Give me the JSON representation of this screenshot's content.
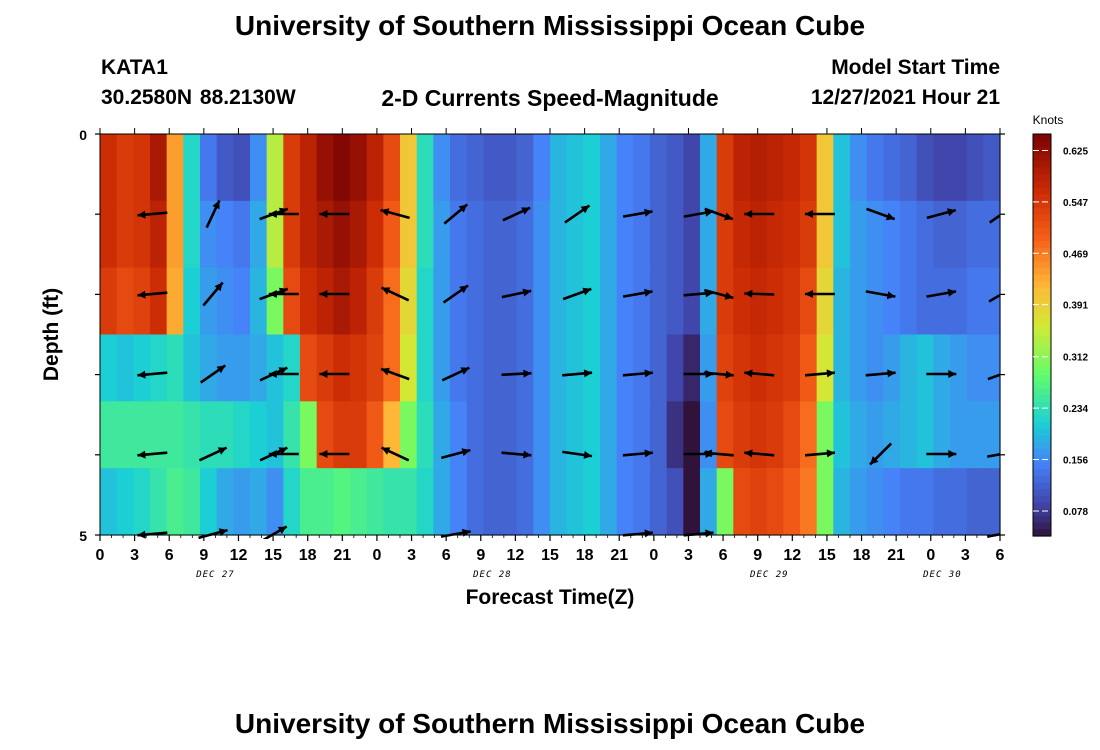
{
  "header": {
    "title": "University of Southern Mississippi Ocean Cube",
    "station": "KATA1",
    "coords": "30.2580N  88.2130W",
    "plot_title": "2-D Currents Speed-Magnitude",
    "model_start_label": "Model Start Time",
    "model_start_value": "12/27/2021 Hour 21",
    "footer_title": "University of Southern Mississippi Ocean Cube"
  },
  "chart_data": {
    "type": "heatmap",
    "title": "2-D Currents Speed-Magnitude",
    "xlabel": "Forecast Time(Z)",
    "ylabel": "Depth (ft)",
    "ylim": [
      5,
      0
    ],
    "y_tick_labels": [
      "0",
      "5"
    ],
    "x_tick_labels": [
      "0",
      "3",
      "6",
      "9",
      "12",
      "15",
      "18",
      "21",
      "0",
      "3",
      "6",
      "9",
      "12",
      "15",
      "18",
      "21",
      "0",
      "3",
      "6",
      "9",
      "12",
      "15",
      "18",
      "21",
      "0",
      "3",
      "6"
    ],
    "date_labels": [
      {
        "label": "DEC 27",
        "hour": 12
      },
      {
        "label": "DEC 28",
        "hour": 36
      },
      {
        "label": "DEC 29",
        "hour": 60
      },
      {
        "label": "DEC 30",
        "hour": 75
      }
    ],
    "x_range_hours": [
      0,
      78
    ],
    "depth_layers": [
      0,
      1,
      2,
      3,
      4,
      5
    ],
    "colorbar": {
      "label": "Knots",
      "min": 0.04,
      "max": 0.65,
      "ticks": [
        0.625,
        0.547,
        0.469,
        0.391,
        0.312,
        0.234,
        0.156,
        0.078
      ]
    },
    "speed_knots_by_layer": [
      [
        0.56,
        0.54,
        0.55,
        0.6,
        0.44,
        0.22,
        0.14,
        0.11,
        0.1,
        0.16,
        0.34,
        0.54,
        0.58,
        0.62,
        0.64,
        0.62,
        0.58,
        0.52,
        0.4,
        0.23,
        0.16,
        0.13,
        0.12,
        0.11,
        0.11,
        0.12,
        0.15,
        0.19,
        0.2,
        0.21,
        0.18,
        0.15,
        0.14,
        0.12,
        0.11,
        0.09,
        0.18,
        0.54,
        0.58,
        0.59,
        0.58,
        0.57,
        0.55,
        0.4,
        0.2,
        0.16,
        0.14,
        0.13,
        0.12,
        0.1,
        0.09,
        0.09,
        0.1,
        0.11
      ],
      [
        0.56,
        0.54,
        0.55,
        0.58,
        0.44,
        0.22,
        0.16,
        0.15,
        0.14,
        0.18,
        0.34,
        0.54,
        0.58,
        0.6,
        0.62,
        0.6,
        0.56,
        0.5,
        0.4,
        0.23,
        0.17,
        0.14,
        0.13,
        0.12,
        0.12,
        0.13,
        0.16,
        0.19,
        0.2,
        0.21,
        0.18,
        0.15,
        0.14,
        0.12,
        0.11,
        0.09,
        0.18,
        0.54,
        0.57,
        0.58,
        0.57,
        0.56,
        0.54,
        0.4,
        0.2,
        0.17,
        0.16,
        0.15,
        0.14,
        0.13,
        0.12,
        0.12,
        0.13,
        0.13
      ],
      [
        0.54,
        0.52,
        0.53,
        0.56,
        0.43,
        0.21,
        0.17,
        0.16,
        0.15,
        0.19,
        0.3,
        0.52,
        0.56,
        0.58,
        0.6,
        0.58,
        0.54,
        0.48,
        0.38,
        0.22,
        0.17,
        0.14,
        0.13,
        0.12,
        0.12,
        0.13,
        0.16,
        0.19,
        0.2,
        0.21,
        0.18,
        0.15,
        0.14,
        0.12,
        0.11,
        0.09,
        0.18,
        0.54,
        0.56,
        0.57,
        0.56,
        0.55,
        0.52,
        0.38,
        0.19,
        0.17,
        0.16,
        0.15,
        0.14,
        0.13,
        0.13,
        0.13,
        0.14,
        0.14
      ],
      [
        0.21,
        0.2,
        0.21,
        0.22,
        0.23,
        0.2,
        0.18,
        0.17,
        0.17,
        0.18,
        0.2,
        0.22,
        0.52,
        0.54,
        0.56,
        0.55,
        0.53,
        0.48,
        0.36,
        0.22,
        0.17,
        0.14,
        0.13,
        0.12,
        0.12,
        0.13,
        0.16,
        0.19,
        0.2,
        0.21,
        0.18,
        0.15,
        0.14,
        0.12,
        0.09,
        0.06,
        0.17,
        0.53,
        0.55,
        0.56,
        0.55,
        0.54,
        0.5,
        0.36,
        0.19,
        0.17,
        0.16,
        0.17,
        0.19,
        0.2,
        0.18,
        0.17,
        0.16,
        0.16
      ],
      [
        0.25,
        0.25,
        0.25,
        0.25,
        0.25,
        0.24,
        0.23,
        0.23,
        0.22,
        0.21,
        0.2,
        0.24,
        0.3,
        0.52,
        0.54,
        0.54,
        0.5,
        0.42,
        0.3,
        0.23,
        0.18,
        0.15,
        0.13,
        0.12,
        0.12,
        0.13,
        0.16,
        0.19,
        0.2,
        0.21,
        0.18,
        0.15,
        0.14,
        0.12,
        0.07,
        0.04,
        0.16,
        0.52,
        0.54,
        0.55,
        0.54,
        0.52,
        0.48,
        0.3,
        0.2,
        0.18,
        0.17,
        0.18,
        0.19,
        0.2,
        0.18,
        0.17,
        0.17,
        0.17
      ],
      [
        0.2,
        0.21,
        0.22,
        0.24,
        0.26,
        0.25,
        0.21,
        0.18,
        0.17,
        0.18,
        0.16,
        0.22,
        0.26,
        0.26,
        0.27,
        0.26,
        0.25,
        0.24,
        0.24,
        0.22,
        0.18,
        0.15,
        0.13,
        0.12,
        0.12,
        0.13,
        0.16,
        0.19,
        0.2,
        0.21,
        0.18,
        0.15,
        0.14,
        0.12,
        0.1,
        0.02,
        0.18,
        0.3,
        0.52,
        0.53,
        0.52,
        0.5,
        0.47,
        0.3,
        0.19,
        0.17,
        0.16,
        0.15,
        0.14,
        0.14,
        0.13,
        0.13,
        0.12,
        0.12
      ]
    ],
    "arrows": [
      {
        "hour": 3,
        "layer": 1,
        "angle_deg": 185
      },
      {
        "hour": 3,
        "layer": 2,
        "angle_deg": 185
      },
      {
        "hour": 3,
        "layer": 3,
        "angle_deg": 185
      },
      {
        "hour": 3,
        "layer": 4,
        "angle_deg": 185
      },
      {
        "hour": 3,
        "layer": 5,
        "angle_deg": 185
      },
      {
        "hour": 9,
        "layer": 1,
        "angle_deg": 65
      },
      {
        "hour": 9,
        "layer": 2,
        "angle_deg": 50
      },
      {
        "hour": 9,
        "layer": 3,
        "angle_deg": 35
      },
      {
        "hour": 9,
        "layer": 4,
        "angle_deg": 25
      },
      {
        "hour": 9,
        "layer": 5,
        "angle_deg": 15
      },
      {
        "hour": 15,
        "layer": 1,
        "angle_deg": 20
      },
      {
        "hour": 15,
        "layer": 2,
        "angle_deg": 20
      },
      {
        "hour": 15,
        "layer": 3,
        "angle_deg": 25
      },
      {
        "hour": 15,
        "layer": 4,
        "angle_deg": 25
      },
      {
        "hour": 15,
        "layer": 5,
        "angle_deg": 30
      },
      {
        "hour": 16,
        "layer": 1,
        "angle_deg": 180
      },
      {
        "hour": 16,
        "layer": 2,
        "angle_deg": 180
      },
      {
        "hour": 16,
        "layer": 3,
        "angle_deg": 180
      },
      {
        "hour": 16,
        "layer": 4,
        "angle_deg": 180
      },
      {
        "hour": 21,
        "layer": 1,
        "angle_deg": 180
      },
      {
        "hour": 21,
        "layer": 2,
        "angle_deg": 180
      },
      {
        "hour": 21,
        "layer": 3,
        "angle_deg": 180
      },
      {
        "hour": 21,
        "layer": 4,
        "angle_deg": 180
      },
      {
        "hour": 27,
        "layer": 1,
        "angle_deg": 165
      },
      {
        "hour": 27,
        "layer": 2,
        "angle_deg": 155
      },
      {
        "hour": 27,
        "layer": 3,
        "angle_deg": 160
      },
      {
        "hour": 27,
        "layer": 4,
        "angle_deg": 155
      },
      {
        "hour": 33,
        "layer": 1,
        "angle_deg": 40
      },
      {
        "hour": 33,
        "layer": 2,
        "angle_deg": 35
      },
      {
        "hour": 33,
        "layer": 3,
        "angle_deg": 25
      },
      {
        "hour": 33,
        "layer": 4,
        "angle_deg": 15
      },
      {
        "hour": 33,
        "layer": 5,
        "angle_deg": 10
      },
      {
        "hour": 39,
        "layer": 1,
        "angle_deg": 25
      },
      {
        "hour": 39,
        "layer": 2,
        "angle_deg": 12
      },
      {
        "hour": 39,
        "layer": 3,
        "angle_deg": 3
      },
      {
        "hour": 39,
        "layer": 4,
        "angle_deg": -5
      },
      {
        "hour": 45,
        "layer": 1,
        "angle_deg": 35
      },
      {
        "hour": 45,
        "layer": 2,
        "angle_deg": 20
      },
      {
        "hour": 45,
        "layer": 3,
        "angle_deg": 5
      },
      {
        "hour": 45,
        "layer": 4,
        "angle_deg": -8
      },
      {
        "hour": 51,
        "layer": 1,
        "angle_deg": 10
      },
      {
        "hour": 51,
        "layer": 2,
        "angle_deg": 10
      },
      {
        "hour": 51,
        "layer": 3,
        "angle_deg": 5
      },
      {
        "hour": 51,
        "layer": 4,
        "angle_deg": 5
      },
      {
        "hour": 51,
        "layer": 5,
        "angle_deg": 5
      },
      {
        "hour": 57,
        "layer": 1,
        "angle_deg": 10
      },
      {
        "hour": 57,
        "layer": 2,
        "angle_deg": 5
      },
      {
        "hour": 57,
        "layer": 3,
        "angle_deg": 0
      },
      {
        "hour": 57,
        "layer": 4,
        "angle_deg": 0
      },
      {
        "hour": 57,
        "layer": 5,
        "angle_deg": 5
      },
      {
        "hour": 59,
        "layer": 1,
        "angle_deg": -20
      },
      {
        "hour": 59,
        "layer": 2,
        "angle_deg": -15
      },
      {
        "hour": 59,
        "layer": 3,
        "angle_deg": -5
      },
      {
        "hour": 59,
        "layer": 4,
        "angle_deg": 175
      },
      {
        "hour": 63,
        "layer": 1,
        "angle_deg": 180
      },
      {
        "hour": 63,
        "layer": 2,
        "angle_deg": 178
      },
      {
        "hour": 63,
        "layer": 3,
        "angle_deg": 175
      },
      {
        "hour": 63,
        "layer": 4,
        "angle_deg": 175
      },
      {
        "hour": 69,
        "layer": 1,
        "angle_deg": 180
      },
      {
        "hour": 69,
        "layer": 2,
        "angle_deg": 180
      },
      {
        "hour": 69,
        "layer": 3,
        "angle_deg": 5
      },
      {
        "hour": 69,
        "layer": 4,
        "angle_deg": 5
      },
      {
        "hour": 75,
        "layer": 1,
        "angle_deg": -20
      },
      {
        "hour": 75,
        "layer": 2,
        "angle_deg": -10
      },
      {
        "hour": 75,
        "layer": 3,
        "angle_deg": 5
      },
      {
        "hour": 75,
        "layer": 4,
        "angle_deg": 225
      },
      {
        "hour": 81,
        "layer": 1,
        "angle_deg": 15
      },
      {
        "hour": 81,
        "layer": 2,
        "angle_deg": 10
      },
      {
        "hour": 81,
        "layer": 3,
        "angle_deg": 0
      },
      {
        "hour": 81,
        "layer": 4,
        "angle_deg": 0
      },
      {
        "hour": 87,
        "layer": 1,
        "angle_deg": 35
      },
      {
        "hour": 87,
        "layer": 2,
        "angle_deg": 30
      },
      {
        "hour": 87,
        "layer": 3,
        "angle_deg": 20
      },
      {
        "hour": 87,
        "layer": 4,
        "angle_deg": 10
      },
      {
        "hour": 87,
        "layer": 5,
        "angle_deg": 10
      }
    ]
  }
}
